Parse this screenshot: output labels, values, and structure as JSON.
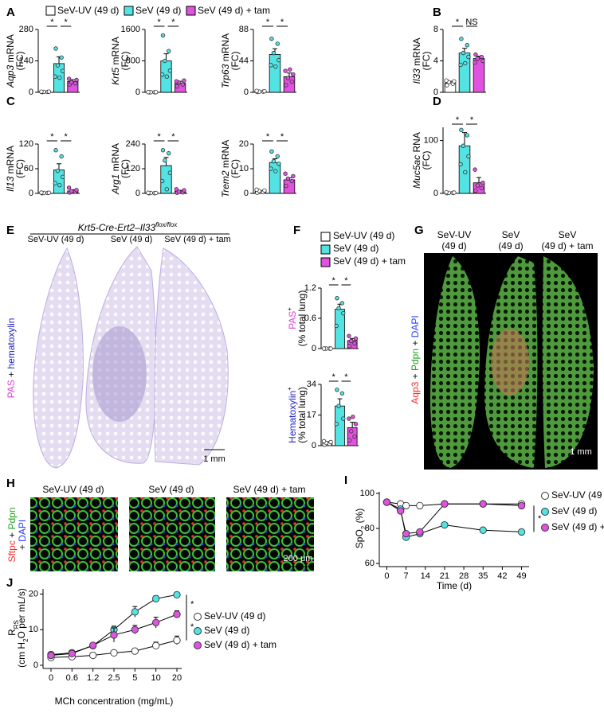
{
  "groups": [
    {
      "name": "SeV-UV (49 d)",
      "color": "#ffffff"
    },
    {
      "name": "SeV (49 d)",
      "color": "#53e3e3"
    },
    {
      "name": "SeV (49 d) + tam",
      "color": "#e052e0"
    }
  ],
  "chart_data": [
    {
      "type": "bar",
      "panel": "A",
      "ylabel": [
        [
          {
            "text": "Aqp3",
            "italic": true
          },
          {
            "text": " mRNA"
          }
        ],
        [
          {
            "text": "(FC)"
          }
        ]
      ],
      "ylim": [
        0,
        280
      ],
      "yticks": [
        0,
        140,
        280
      ],
      "values": [
        2,
        128,
        48
      ],
      "errors": [
        1,
        30,
        8
      ],
      "points": [
        [
          1,
          2,
          2,
          3,
          3
        ],
        [
          195,
          155,
          120,
          95,
          70,
          65
        ],
        [
          35,
          40,
          45,
          55,
          60
        ]
      ],
      "significance": [
        "*",
        "*"
      ]
    },
    {
      "type": "bar",
      "ylabel": [
        [
          {
            "text": "Krt5",
            "italic": true
          },
          {
            "text": " mRNA"
          }
        ],
        [
          {
            "text": "(FC)"
          }
        ]
      ],
      "ylim": [
        0,
        1600
      ],
      "yticks": [
        0,
        800,
        1600
      ],
      "values": [
        3,
        800,
        230
      ],
      "errors": [
        2,
        180,
        50
      ],
      "points": [
        [
          1,
          2,
          3,
          4,
          5
        ],
        [
          1450,
          1050,
          800,
          550,
          450,
          400
        ],
        [
          150,
          200,
          250,
          300,
          280
        ]
      ],
      "significance": [
        "*",
        "*"
      ]
    },
    {
      "type": "bar",
      "ylabel": [
        [
          {
            "text": "Trp63",
            "italic": true
          },
          {
            "text": " mRNA"
          }
        ],
        [
          {
            "text": "(FC)"
          }
        ]
      ],
      "ylim": [
        0,
        88
      ],
      "yticks": [
        0,
        44,
        88
      ],
      "values": [
        1,
        53,
        22
      ],
      "errors": [
        0.5,
        8,
        5
      ],
      "points": [
        [
          0.5,
          1,
          1,
          1.5,
          2
        ],
        [
          75,
          68,
          55,
          45,
          38,
          36
        ],
        [
          10,
          15,
          20,
          25,
          30,
          32
        ]
      ],
      "significance": [
        "*",
        "*"
      ]
    },
    {
      "type": "bar",
      "panel": "B",
      "ylabel": [
        [
          {
            "text": "Il33",
            "italic": true
          },
          {
            "text": " mRNA"
          }
        ],
        [
          {
            "text": "(FC)"
          }
        ]
      ],
      "ylim": [
        0,
        8
      ],
      "yticks": [
        0,
        4,
        8
      ],
      "values": [
        1.2,
        5,
        4.3
      ],
      "errors": [
        0.2,
        0.6,
        0.3
      ],
      "points": [
        [
          0.9,
          1.1,
          1.3,
          1.4,
          1.5
        ],
        [
          6.8,
          6,
          5,
          4.5,
          3.5,
          3.7
        ],
        [
          4.8,
          4.5,
          4.3,
          4,
          3.8
        ]
      ],
      "significance": [
        "*",
        "NS"
      ]
    },
    {
      "type": "bar",
      "panel": "C",
      "ylabel": [
        [
          {
            "text": "Il13",
            "italic": true
          },
          {
            "text": " mRNA"
          }
        ],
        [
          {
            "text": "(FC)"
          }
        ]
      ],
      "ylim": [
        0,
        120
      ],
      "yticks": [
        0,
        60,
        120
      ],
      "values": [
        1,
        57,
        6
      ],
      "errors": [
        0.5,
        15,
        3
      ],
      "points": [
        [
          0.5,
          1,
          1,
          1.5,
          2
        ],
        [
          105,
          90,
          55,
          40,
          25,
          20
        ],
        [
          2,
          4,
          5,
          8,
          14
        ]
      ],
      "significance": [
        "*",
        "*"
      ]
    },
    {
      "type": "bar",
      "ylabel": [
        [
          {
            "text": "Arg1",
            "italic": true
          },
          {
            "text": " mRNA"
          }
        ],
        [
          {
            "text": "(FC)"
          }
        ]
      ],
      "ylim": [
        0,
        240
      ],
      "yticks": [
        0,
        120,
        240
      ],
      "values": [
        2,
        135,
        10
      ],
      "errors": [
        1,
        40,
        5
      ],
      "points": [
        [
          1,
          1,
          2,
          2,
          3
        ],
        [
          210,
          195,
          160,
          100,
          60,
          20
        ],
        [
          3,
          5,
          8,
          15,
          20
        ]
      ],
      "significance": [
        "*",
        "*"
      ]
    },
    {
      "type": "bar",
      "ylabel": [
        [
          {
            "text": "Trem2",
            "italic": true
          },
          {
            "text": " mRNA"
          }
        ],
        [
          {
            "text": "(FC)"
          }
        ]
      ],
      "ylim": [
        0,
        20
      ],
      "yticks": [
        0,
        10,
        20
      ],
      "values": [
        0.8,
        12.5,
        5.5
      ],
      "errors": [
        0.3,
        1.5,
        0.8
      ],
      "points": [
        [
          0.3,
          0.5,
          1,
          1.2,
          1.5
        ],
        [
          17,
          15,
          13,
          12,
          10,
          9
        ],
        [
          3,
          5,
          6,
          7,
          8
        ]
      ],
      "significance": [
        "*",
        "*"
      ]
    },
    {
      "type": "bar",
      "panel": "D",
      "ylabel": [
        [
          {
            "text": "Muc5ac",
            "italic": true
          },
          {
            "text": " RNA"
          }
        ],
        [
          {
            "text": "(FC)"
          }
        ]
      ],
      "ylim": [
        0,
        125
      ],
      "yticks": [
        0,
        100
      ],
      "values": [
        1,
        90,
        20
      ],
      "errors": [
        0.5,
        25,
        10
      ],
      "points": [
        [
          0.5,
          1,
          1,
          1.5,
          2
        ],
        [
          120,
          110,
          90,
          70,
          55,
          40
        ],
        [
          5,
          10,
          15,
          20,
          45
        ]
      ],
      "significance": [
        "*",
        "*"
      ]
    },
    {
      "type": "bar",
      "panel": "F",
      "ylabel": [
        [
          {
            "text": "PAS",
            "color": "#e040e0"
          },
          {
            "text": "+",
            "sup": true
          }
        ],
        [
          {
            "text": "(% total lung)"
          }
        ]
      ],
      "ylim": [
        0,
        1.2
      ],
      "yticks": [
        0,
        0.6,
        1.2
      ],
      "values": [
        0,
        0.78,
        0.16
      ],
      "errors": [
        0,
        0.1,
        0.04
      ],
      "points": [
        [
          0,
          0,
          0,
          0,
          0
        ],
        [
          1,
          0.9,
          0.8,
          0.7,
          0.45
        ],
        [
          0.05,
          0.1,
          0.15,
          0.2,
          0.25
        ]
      ],
      "significance": [
        "*",
        "*"
      ]
    },
    {
      "type": "bar",
      "ylabel": [
        [
          {
            "text": "Hematoxylin",
            "color": "#2020d0"
          },
          {
            "text": "+",
            "sup": true
          }
        ],
        [
          {
            "text": "(% total lung)"
          }
        ]
      ],
      "ylim": [
        0,
        34
      ],
      "yticks": [
        0,
        17,
        34
      ],
      "values": [
        1.5,
        22,
        10
      ],
      "errors": [
        0.7,
        4,
        3
      ],
      "points": [
        [
          0.5,
          1,
          1.5,
          2,
          2.5
        ],
        [
          31,
          29,
          22,
          15,
          12
        ],
        [
          3,
          5,
          8,
          12,
          15,
          16
        ]
      ],
      "significance": [
        "*",
        "*"
      ]
    },
    {
      "type": "line",
      "panel": "I",
      "xlabel": "Time (d)",
      "ylabel": [
        [
          {
            "text": "SpO"
          },
          {
            "text": "2",
            "sub": true
          },
          {
            "text": " (%)"
          }
        ]
      ],
      "x": [
        0,
        5,
        7,
        12,
        21,
        35,
        49
      ],
      "xlim": [
        -1,
        50
      ],
      "xticks": [
        0,
        7,
        14,
        21,
        28,
        35,
        42,
        49
      ],
      "ylim": [
        60,
        100
      ],
      "yticks": [
        60,
        80,
        100
      ],
      "series": [
        {
          "name": "SeV-UV (49 d)",
          "color": "#ffffff",
          "values": [
            95,
            94,
            93,
            93,
            94,
            94,
            94
          ]
        },
        {
          "name": "SeV (49 d)",
          "color": "#53e3e3",
          "values": [
            95,
            91,
            75,
            77,
            82,
            79,
            78
          ]
        },
        {
          "name": "SeV (49 d) + tam",
          "color": "#e052e0",
          "values": [
            95,
            90,
            77,
            78,
            94,
            94,
            93
          ]
        }
      ],
      "significance": [
        "*"
      ]
    },
    {
      "type": "line",
      "panel": "J",
      "xlabel": "MCh concentration (mg/mL)",
      "ylabel": [
        [
          {
            "text": "R"
          },
          {
            "text": "RS",
            "sub": true
          }
        ],
        [
          {
            "text": "(cm H"
          },
          {
            "text": "2",
            "sub": true
          },
          {
            "text": "O per mL/s)"
          }
        ]
      ],
      "categories": [
        "0",
        "0.6",
        "1.2",
        "2.5",
        "5",
        "10",
        "20"
      ],
      "ylim": [
        0,
        21
      ],
      "yticks": [
        0,
        10,
        20
      ],
      "series": [
        {
          "name": "SeV-UV (49 d)",
          "color": "#ffffff",
          "values": [
            2.2,
            2.4,
            2.8,
            3.5,
            4,
            5.5,
            7
          ],
          "errors": [
            0.3,
            0.2,
            0.2,
            0.3,
            0.5,
            1,
            1.2
          ]
        },
        {
          "name": "SeV (49 d)",
          "color": "#53e3e3",
          "values": [
            3,
            3.5,
            5.5,
            10,
            15,
            18.7,
            19.8
          ],
          "errors": [
            0.3,
            0.3,
            0.5,
            1,
            1.5,
            0.8,
            0.6
          ]
        },
        {
          "name": "SeV (49 d) + tam",
          "color": "#e052e0",
          "values": [
            2.8,
            3.3,
            5.6,
            8.5,
            10,
            12,
            14.3
          ],
          "errors": [
            0.3,
            0.3,
            0.5,
            2,
            1.2,
            1.5,
            1
          ]
        }
      ],
      "significance": [
        "*",
        "*"
      ]
    }
  ],
  "images": [
    {
      "panel": "E",
      "title": [
        [
          {
            "text": "Krt5-Cre-Ert2–Il33",
            "italic": true
          },
          {
            "text": "flox/flox",
            "italic": true,
            "sup": true
          }
        ]
      ],
      "columns": [
        "SeV-UV (49 d)",
        "SeV (49 d)",
        "SeV (49 d) + tam"
      ],
      "stain": [
        [
          {
            "text": "PAS",
            "color": "#e040e0"
          },
          {
            "text": " + "
          },
          {
            "text": "hematoxylin",
            "color": "#2020d0"
          }
        ]
      ],
      "scale_bar": "1 mm"
    },
    {
      "panel": "G",
      "columns": [
        [
          "SeV-UV",
          "(49 d)"
        ],
        [
          "SeV",
          "(49 d)"
        ],
        [
          "SeV",
          "(49 d) + tam"
        ]
      ],
      "stain": [
        [
          {
            "text": "Aqp3",
            "color": "#ff2a2a"
          },
          {
            "text": " + "
          },
          {
            "text": "Pdpn",
            "color": "#1fa01f"
          },
          {
            "text": " + "
          },
          {
            "text": "DAPI",
            "color": "#2a40ff"
          }
        ]
      ],
      "scale_bar": "1 mm"
    },
    {
      "panel": "H",
      "columns": [
        "SeV-UV (49 d)",
        "SeV (49 d)",
        "SeV (49 d) + tam"
      ],
      "stain": [
        [
          {
            "text": "Sftpc",
            "color": "#ff2a2a"
          },
          {
            "text": " + "
          },
          {
            "text": "Pdpn",
            "color": "#1fa01f"
          }
        ],
        [
          {
            "text": "+ "
          },
          {
            "text": "DAPI",
            "color": "#2a40ff"
          }
        ]
      ],
      "scale_bar": "200 μm"
    }
  ]
}
